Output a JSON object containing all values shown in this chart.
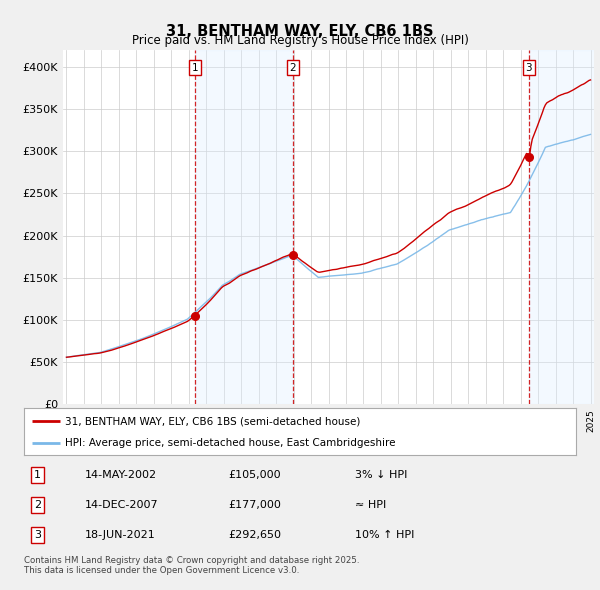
{
  "title": "31, BENTHAM WAY, ELY, CB6 1BS",
  "subtitle": "Price paid vs. HM Land Registry's House Price Index (HPI)",
  "legend_line1": "31, BENTHAM WAY, ELY, CB6 1BS (semi-detached house)",
  "legend_line2": "HPI: Average price, semi-detached house, East Cambridgeshire",
  "transactions": [
    {
      "num": 1,
      "date": "14-MAY-2002",
      "price": 105000,
      "rel": "3% ↓ HPI",
      "year": 2002.37
    },
    {
      "num": 2,
      "date": "14-DEC-2007",
      "price": 177000,
      "rel": "≈ HPI",
      "year": 2007.95
    },
    {
      "num": 3,
      "date": "18-JUN-2021",
      "price": 292650,
      "rel": "10% ↑ HPI",
      "year": 2021.46
    }
  ],
  "footnote": "Contains HM Land Registry data © Crown copyright and database right 2025.\nThis data is licensed under the Open Government Licence v3.0.",
  "hpi_color": "#7ab8e8",
  "price_color": "#cc0000",
  "dot_color": "#cc0000",
  "vline_color": "#cc0000",
  "shade_color": "#ddeeff",
  "grid_color": "#cccccc",
  "bg_color": "#f0f0f0",
  "plot_bg": "#ffffff",
  "ylim": [
    0,
    420000
  ],
  "yticks": [
    0,
    50000,
    100000,
    150000,
    200000,
    250000,
    300000,
    350000,
    400000
  ],
  "start_year": 1995,
  "end_year": 2025
}
